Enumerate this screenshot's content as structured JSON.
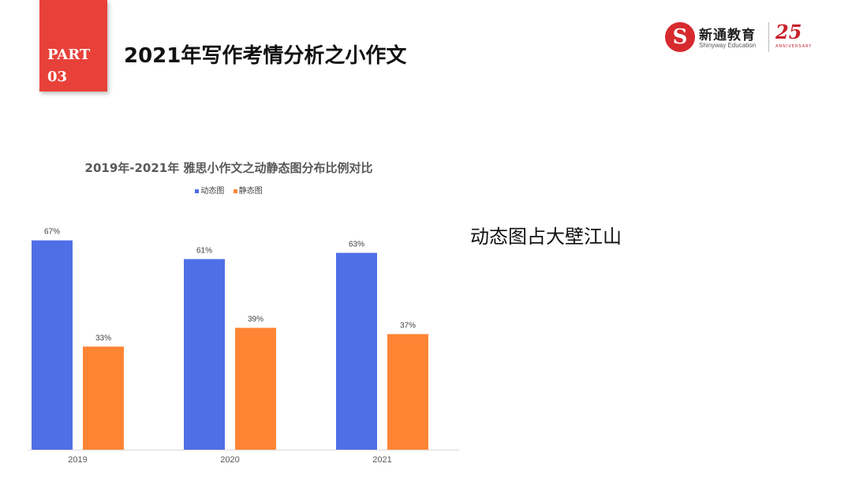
{
  "part_badge": {
    "line1": "PART",
    "line2": "03"
  },
  "slide_title": "2021年写作考情分析之小作文",
  "logo": {
    "mark": "S",
    "name": "新通教育",
    "sub": "Shinyway Education",
    "anniversary": "25",
    "anniversary_sub": "ANNIVERSARY"
  },
  "side_text": "动态图占大壁江山",
  "colors": {
    "accent_red": "#e8413a",
    "series_dynamic": "#4f6fe6",
    "series_static": "#ff8535"
  },
  "chart_data": {
    "type": "bar",
    "title": "2019年-2021年 雅思小作文之动静态图分布比例对比",
    "categories": [
      "2019",
      "2020",
      "2021"
    ],
    "series": [
      {
        "name": "动态图",
        "values": [
          67,
          61,
          63
        ],
        "labels": [
          "67%",
          "61%",
          "63%"
        ],
        "color": "#4f6fe6"
      },
      {
        "name": "静态图",
        "values": [
          33,
          39,
          37
        ],
        "labels": [
          "33%",
          "39%",
          "37%"
        ],
        "color": "#ff8535"
      }
    ],
    "ylim": [
      0,
      75
    ],
    "grid": false,
    "legend_position": "top",
    "xlabel": "",
    "ylabel": ""
  }
}
